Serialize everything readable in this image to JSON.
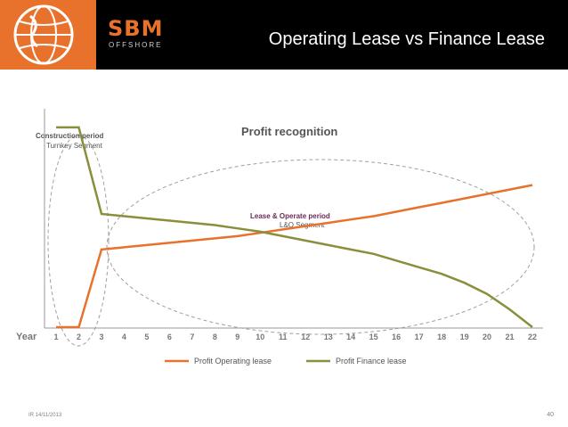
{
  "slide": {
    "title": "Operating Lease vs Finance Lease",
    "brand_mark": "SBM",
    "brand_sub": "OFFSHORE",
    "footer_left": "IR 14/11/2013",
    "page_number": "40"
  },
  "colors": {
    "header_bg": "#000000",
    "logo_bg": "#e8722c",
    "operating": "#e8722c",
    "finance": "#8a8f3c",
    "ellipse": "#a0a0a0"
  },
  "chart_data": {
    "type": "line",
    "title": "Profit recognition",
    "xlabel": "Year",
    "ylabel": "",
    "x": [
      1,
      2,
      3,
      4,
      5,
      6,
      7,
      8,
      9,
      10,
      11,
      12,
      13,
      14,
      15,
      16,
      17,
      18,
      19,
      20,
      21,
      22
    ],
    "series": [
      {
        "name": "Profit Operating lease",
        "values": [
          0,
          0,
          35,
          36,
          37,
          38,
          39,
          40,
          41,
          42.5,
          44,
          45.5,
          47,
          48.5,
          50,
          52,
          54,
          56,
          58,
          60,
          62,
          64
        ]
      },
      {
        "name": "Profit Finance lease",
        "values": [
          90,
          90,
          51,
          50,
          49,
          48,
          47,
          46,
          44.5,
          43,
          41,
          39,
          37,
          35,
          33,
          30,
          27,
          24,
          20,
          15,
          8,
          0
        ]
      }
    ],
    "ylim": [
      0,
      100
    ],
    "grid": false,
    "legend": "bottom",
    "annotations": [
      {
        "title": "Construction period",
        "subtitle": "Turnkey Segment"
      },
      {
        "title": "Lease & Operate period",
        "subtitle": "L&O Segment"
      }
    ]
  }
}
